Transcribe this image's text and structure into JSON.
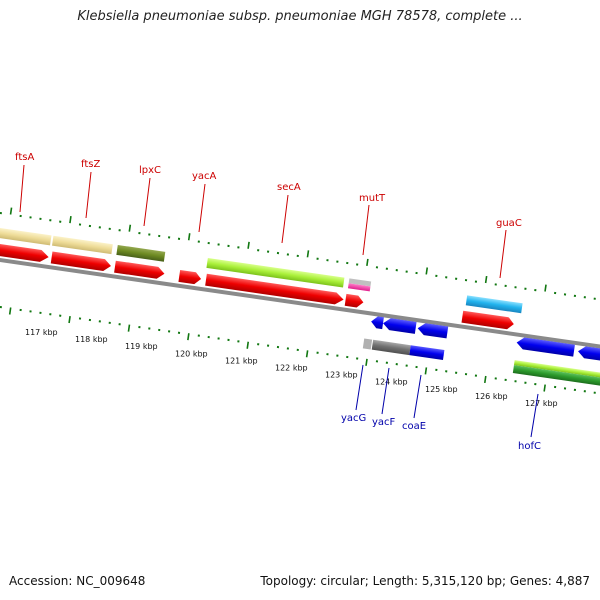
{
  "title": "Klebsiella pneumoniae subsp. pneumoniae MGH 78578, complete ...",
  "footer": {
    "accession": "Accession: NC_009648",
    "info": "Topology: circular; Length: 5,315,120 bp; Genes: 4,887"
  },
  "colors": {
    "forward_label": "#cc0000",
    "reverse_label": "#0000aa",
    "tick": "#117711",
    "backbone": "#888888"
  },
  "tick_labels": [
    "117 kbp",
    "118 kbp",
    "119 kbp",
    "120 kbp",
    "121 kbp",
    "122 kbp",
    "123 kbp",
    "124 kbp",
    "125 kbp",
    "126 kbp",
    "127 kbp"
  ],
  "genes": {
    "ftsA": "ftsA",
    "ftsZ": "ftsZ",
    "lpxC": "lpxC",
    "yacA": "yacA",
    "secA": "secA",
    "mutT": "mutT",
    "guaC": "guaC",
    "yacG": "yacG",
    "yacF": "yacF",
    "coaE": "coaE",
    "hofC": "hofC"
  }
}
